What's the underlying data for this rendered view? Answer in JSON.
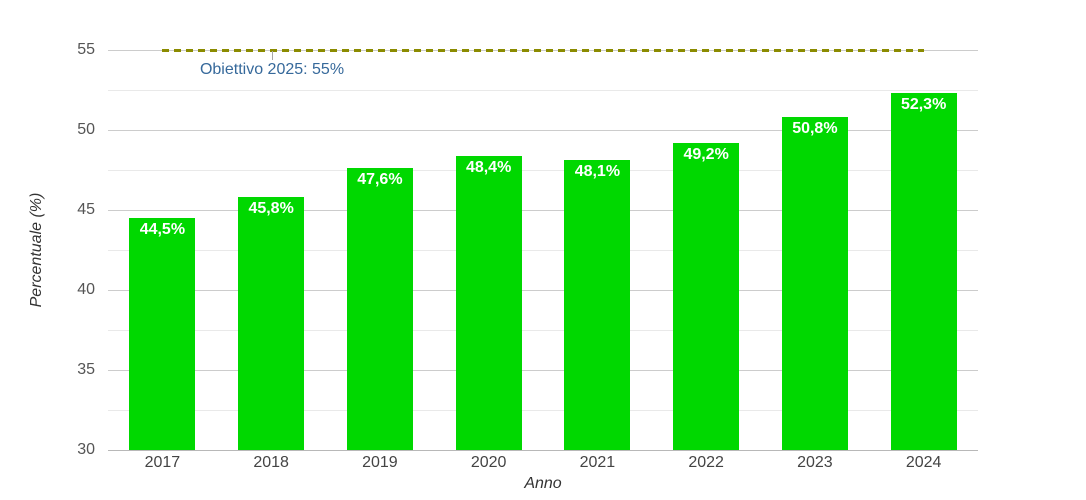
{
  "chart_data": {
    "type": "bar",
    "title": "",
    "xlabel": "Anno",
    "ylabel": "Percentuale (%)",
    "categories": [
      "2017",
      "2018",
      "2019",
      "2020",
      "2021",
      "2022",
      "2023",
      "2024"
    ],
    "values": [
      44.5,
      45.8,
      47.6,
      48.4,
      48.1,
      49.2,
      50.8,
      52.3
    ],
    "value_labels": [
      "44,5%",
      "45,8%",
      "47,6%",
      "48,4%",
      "48,1%",
      "49,2%",
      "50,8%",
      "52,3%"
    ],
    "ylim": [
      30,
      55
    ],
    "y_major_ticks": [
      30,
      35,
      40,
      45,
      50,
      55
    ],
    "y_minor_ticks": [
      32.5,
      37.5,
      42.5,
      47.5,
      52.5
    ],
    "grid": true,
    "legend_position": "none",
    "target_line": {
      "value": 55,
      "label": "Obiettivo 2025: 55%"
    },
    "colors": {
      "bar": "#00d800",
      "bar_label": "#ffffff",
      "target_line": "#8b8b00",
      "target_label": "#36699b",
      "grid_major": "#cccccc",
      "grid_minor": "#e9e9e9",
      "axis_line": "#b8b8b8",
      "y_tick_label": "#555555",
      "x_tick_label": "#444444"
    }
  }
}
